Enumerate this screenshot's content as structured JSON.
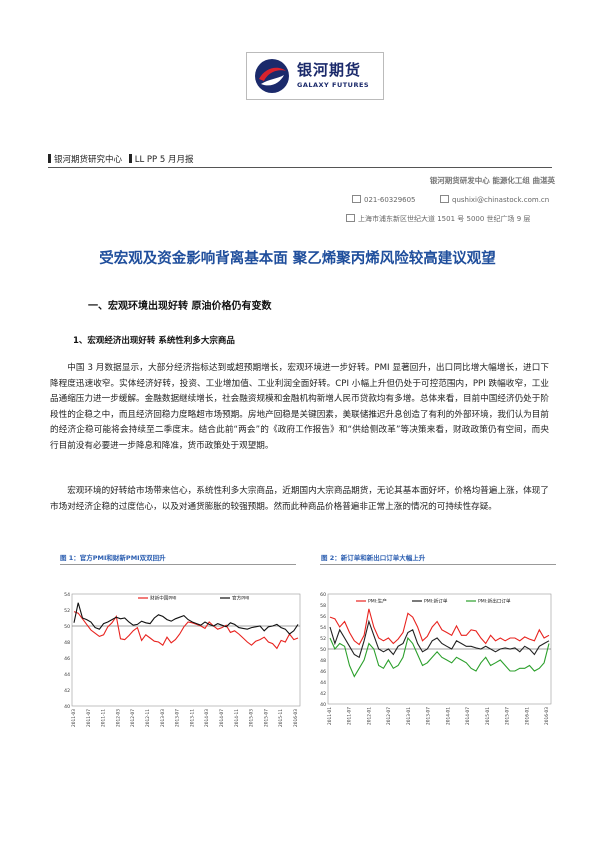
{
  "logo": {
    "name_cn": "银河期货",
    "name_en": "GALAXY FUTURES"
  },
  "header": {
    "org": "银河期货研究中心",
    "report": "LL PP 5 月月报"
  },
  "contacts": {
    "team": "银河期货研发中心 能源化工组 曲湛英",
    "phone": "021-60329605",
    "email": "qushixi@chinastock.com.cn",
    "address": "上海市浦东新区世纪大道 1501 号 5000 世纪广场 9 层"
  },
  "title": "受宏观及资金影响背离基本面 聚乙烯聚丙烯风险较高建议观望",
  "section_heading": "一、宏观环境出现好转 原油价格仍有变数",
  "sub_heading": "1、宏观经济出现好转 系统性利多大宗商品",
  "paragraphs": [
    "中国 3 月数据显示，大部分经济指标达到或超预期增长，宏观环境进一步好转。PMI 显著回升，出口同比增大幅增长，进口下降程度迅速收窄。实体经济好转，投资、工业增加值、工业利润全面好转。CPI 小幅上升但仍处于可控范围内，PPI 跌幅收窄，工业品通缩压力进一步缓解。金融数据继续增长，社会融资规模和金融机构新增人民币贷款均有多增。总体来看，目前中国经济仍处于阶段性的企稳之中，而且经济回稳力度略超市场预期。房地产回稳是关键因素，美联储推迟升息创造了有利的外部环境，我们认为目前的经济企稳可能将会持续至二季度末。结合此前“两会”的《政府工作报告》和“供给侧改革”等决策来看，财政政策仍有空间，而央行目前没有必要进一步降息和降准，货币政策处于观望期。",
    "宏观环境的好转给市场带来信心，系统性利多大宗商品，近期国内大宗商品期货，无论其基本面好坏，价格均普遍上涨，体现了市场对经济企稳的过度信心，以及对通货膨胀的较强预期。然而此种商品价格普遍非正常上涨的情况的可持续性存疑。"
  ],
  "figures": [
    {
      "caption": "图 1：官方PMI和财新PMI双双回升",
      "legend": [
        "财新中国PMI",
        "官方PMI"
      ]
    },
    {
      "caption": "图 2：新订单和新出口订单大幅上升",
      "legend": [
        "PMI:生产",
        "PMI:新订单",
        "PMI:新出口订单"
      ]
    }
  ],
  "chart_data": [
    {
      "type": "line",
      "title": "",
      "ylim": [
        40,
        54
      ],
      "y_ticks": [
        "40",
        "42",
        "44",
        "46",
        "48",
        "50",
        "52",
        "54"
      ],
      "x_tick_labels": [
        "2011-03",
        "2011-07",
        "2011-11",
        "2012-03",
        "2012-07",
        "2012-11",
        "2013-03",
        "2013-07",
        "2013-11",
        "2014-03",
        "2014-07",
        "2014-11",
        "2015-03",
        "2015-07",
        "2015-11",
        "2016-03"
      ],
      "series": [
        {
          "name": "财新中国PMI",
          "color": "#e8231f",
          "values": [
            51.8,
            51.6,
            50.9,
            50.2,
            49.5,
            49.1,
            48.7,
            48.9,
            49.9,
            50.4,
            51.2,
            48.4,
            48.3,
            48.8,
            49.4,
            49.8,
            48.2,
            48.9,
            48.5,
            48.1,
            48.0,
            47.6,
            48.6,
            47.9,
            48.3,
            49.0,
            49.9,
            50.5,
            50.4,
            50.2,
            50.0,
            49.7,
            50.5,
            50.0,
            49.6,
            49.8,
            50.1,
            49.2,
            49.4,
            49.0,
            48.5,
            48.0,
            47.6,
            48.1,
            48.3,
            48.6,
            48.0,
            47.8,
            47.2,
            48.2,
            48.0,
            49.0,
            48.3,
            48.5
          ]
        },
        {
          "name": "官方PMI",
          "color": "#111111",
          "values": [
            50.4,
            52.9,
            51.0,
            50.8,
            50.5,
            49.8,
            49.6,
            50.3,
            50.5,
            50.8,
            51.1,
            50.9,
            51.0,
            50.5,
            50.1,
            50.2,
            50.6,
            50.4,
            50.3,
            51.0,
            51.4,
            51.2,
            50.8,
            50.6,
            50.9,
            51.1,
            51.3,
            50.8,
            50.5,
            50.3,
            50.1,
            50.5,
            50.2,
            50.0,
            50.3,
            50.1,
            49.9,
            50.4,
            50.2,
            49.8,
            49.7,
            49.6,
            49.8,
            49.9,
            50.0,
            49.4,
            49.9,
            50.0,
            50.2,
            49.8,
            49.6,
            49.0,
            49.4,
            50.2
          ]
        }
      ]
    },
    {
      "type": "line",
      "title": "",
      "ylim": [
        40,
        60
      ],
      "y_ticks": [
        "40",
        "42",
        "44",
        "46",
        "48",
        "50",
        "52",
        "54",
        "56",
        "58",
        "60"
      ],
      "x_tick_labels": [
        "2011-01",
        "2011-07",
        "2012-01",
        "2012-07",
        "2013-01",
        "2013-07",
        "2014-01",
        "2014-07",
        "2015-01",
        "2015-07",
        "2016-01",
        "2016-03"
      ],
      "series": [
        {
          "name": "PMI:生产",
          "color": "#e8231f",
          "values": [
            55.8,
            55.5,
            54.0,
            55.0,
            53.0,
            51.5,
            50.8,
            52.5,
            57.3,
            54.0,
            52.0,
            51.5,
            52.0,
            51.0,
            51.8,
            53.0,
            56.5,
            55.8,
            54.0,
            51.5,
            52.3,
            54.0,
            55.0,
            53.5,
            53.0,
            52.5,
            54.2,
            52.5,
            52.5,
            53.5,
            53.3,
            52.0,
            51.0,
            52.5,
            51.5,
            52.0,
            51.5,
            52.0,
            52.0,
            51.5,
            52.2,
            51.8,
            51.5,
            53.5,
            52.0,
            52.5
          ]
        },
        {
          "name": "PMI:新订单",
          "color": "#222222",
          "values": [
            54.0,
            51.0,
            53.5,
            52.0,
            50.5,
            49.0,
            48.5,
            51.5,
            55.0,
            52.5,
            50.0,
            49.5,
            50.0,
            49.0,
            50.5,
            51.0,
            53.0,
            53.5,
            51.0,
            49.5,
            50.0,
            51.5,
            52.0,
            51.0,
            50.5,
            50.0,
            51.5,
            51.0,
            50.5,
            50.5,
            50.2,
            50.0,
            50.5,
            50.0,
            49.5,
            50.0,
            50.2,
            50.0,
            50.2,
            49.5,
            50.5,
            50.0,
            49.0,
            50.5,
            51.0,
            51.5
          ]
        },
        {
          "name": "PMI:新出口订单",
          "color": "#2ca02c",
          "values": [
            52.0,
            50.0,
            51.0,
            50.5,
            47.0,
            45.0,
            46.5,
            48.0,
            51.0,
            50.0,
            47.0,
            46.5,
            48.0,
            46.5,
            47.0,
            48.5,
            52.0,
            51.0,
            49.0,
            47.0,
            47.5,
            48.5,
            49.5,
            48.5,
            48.0,
            47.5,
            48.5,
            48.0,
            47.5,
            46.5,
            46.0,
            47.5,
            48.5,
            47.0,
            47.5,
            48.0,
            47.0,
            46.0,
            46.0,
            46.5,
            46.5,
            47.0,
            46.0,
            46.5,
            47.5,
            51.0
          ]
        }
      ]
    }
  ]
}
